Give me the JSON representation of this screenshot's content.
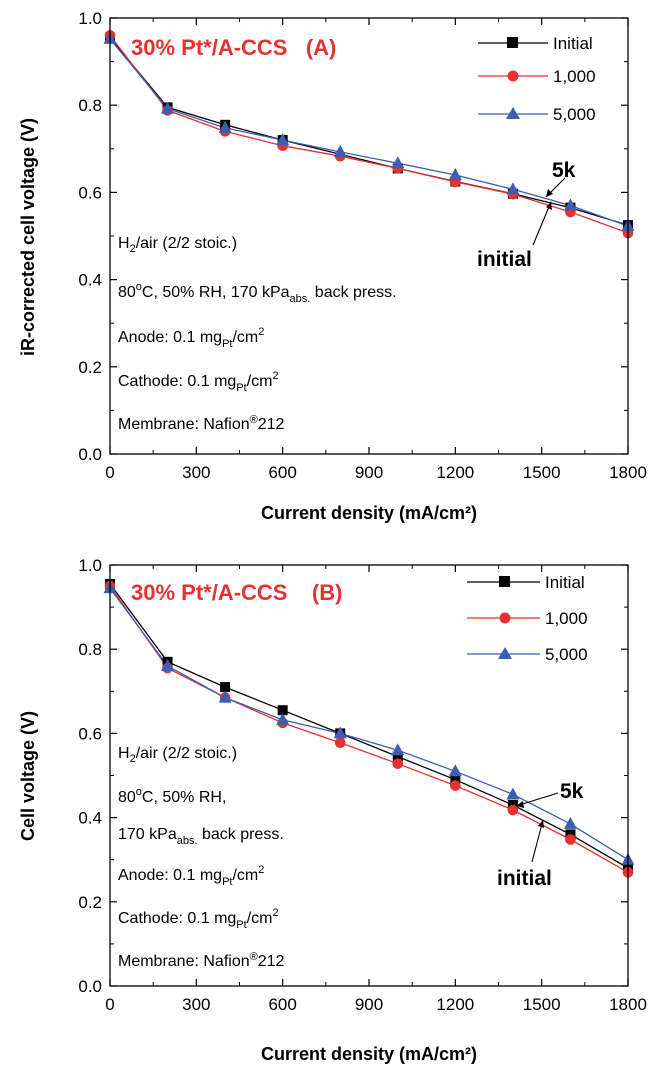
{
  "chart_data": [
    {
      "type": "line",
      "title": "30% Pt*/A-CCS   (A)",
      "xlabel": "Current density (mA/cm²)",
      "ylabel": "iR-corrected cell voltage (V)",
      "xlim": [
        0,
        1800
      ],
      "ylim": [
        0.0,
        1.0
      ],
      "xticks": [
        "0",
        "300",
        "600",
        "900",
        "1200",
        "1500",
        "1800"
      ],
      "yticks": [
        "0.0",
        "0.2",
        "0.4",
        "0.6",
        "0.8",
        "1.0"
      ],
      "legend_position": "top-right",
      "annotations": [
        "H2/air (2/2 stoic.)",
        "80°C, 50% RH, 170 kPaabs. back press.",
        "Anode: 0.1 mgPt/cm2",
        "Cathode: 0.1 mgPt/cm2",
        "Membrane: Nafion®212"
      ],
      "callouts": [
        "5k",
        "initial"
      ],
      "series": [
        {
          "name": "Initial",
          "color": "#000000",
          "marker": "square",
          "x": [
            0,
            200,
            400,
            600,
            1000,
            1200,
            1400,
            1600,
            1800
          ],
          "y": [
            0.955,
            0.795,
            0.755,
            0.72,
            0.655,
            0.625,
            0.597,
            0.565,
            0.525
          ]
        },
        {
          "name": "1,000",
          "color": "#e8312f",
          "marker": "circle",
          "x": [
            0,
            200,
            400,
            600,
            800,
            1000,
            1200,
            1400,
            1600,
            1800
          ],
          "y": [
            0.96,
            0.788,
            0.74,
            0.707,
            0.683,
            0.655,
            0.624,
            0.596,
            0.555,
            0.507
          ]
        },
        {
          "name": "5,000",
          "color": "#3c5eb0",
          "marker": "triangle",
          "x": [
            0,
            200,
            400,
            600,
            800,
            1000,
            1200,
            1400,
            1600,
            1800
          ],
          "y": [
            0.952,
            0.792,
            0.748,
            0.72,
            0.693,
            0.667,
            0.64,
            0.607,
            0.57,
            0.523
          ]
        }
      ]
    },
    {
      "type": "line",
      "title": "30% Pt*/A-CCS    (B)",
      "xlabel": "Current density (mA/cm²)",
      "ylabel": "Cell voltage (V)",
      "xlim": [
        0,
        1800
      ],
      "ylim": [
        0.0,
        1.0
      ],
      "xticks": [
        "0",
        "300",
        "600",
        "900",
        "1200",
        "1500",
        "1800"
      ],
      "yticks": [
        "0.0",
        "0.2",
        "0.4",
        "0.6",
        "0.8",
        "1.0"
      ],
      "legend_position": "top-right",
      "annotations": [
        "H2/air (2/2 stoic.)",
        "80°C, 50% RH,",
        "170 kPaabs. back press.",
        "Anode: 0.1 mgPt/cm2",
        "Cathode: 0.1 mgPt/cm2",
        "Membrane: Nafion®212"
      ],
      "callouts": [
        "5k",
        "initial"
      ],
      "series": [
        {
          "name": "Initial",
          "color": "#000000",
          "marker": "square",
          "x": [
            0,
            200,
            400,
            600,
            800,
            1000,
            1200,
            1400,
            1600,
            1800
          ],
          "y": [
            0.955,
            0.77,
            0.71,
            0.655,
            0.6,
            0.545,
            0.49,
            0.43,
            0.36,
            0.28
          ]
        },
        {
          "name": "1,000",
          "color": "#e8312f",
          "marker": "circle",
          "x": [
            0,
            200,
            400,
            600,
            800,
            1000,
            1200,
            1400,
            1600,
            1800
          ],
          "y": [
            0.95,
            0.755,
            0.685,
            0.625,
            0.578,
            0.528,
            0.476,
            0.418,
            0.348,
            0.27
          ]
        },
        {
          "name": "5,000",
          "color": "#3c5eb0",
          "marker": "triangle",
          "x": [
            0,
            200,
            400,
            600,
            800,
            1000,
            1200,
            1400,
            1600,
            1800
          ],
          "y": [
            0.945,
            0.76,
            0.685,
            0.632,
            0.6,
            0.56,
            0.51,
            0.455,
            0.385,
            0.3
          ]
        }
      ]
    }
  ]
}
